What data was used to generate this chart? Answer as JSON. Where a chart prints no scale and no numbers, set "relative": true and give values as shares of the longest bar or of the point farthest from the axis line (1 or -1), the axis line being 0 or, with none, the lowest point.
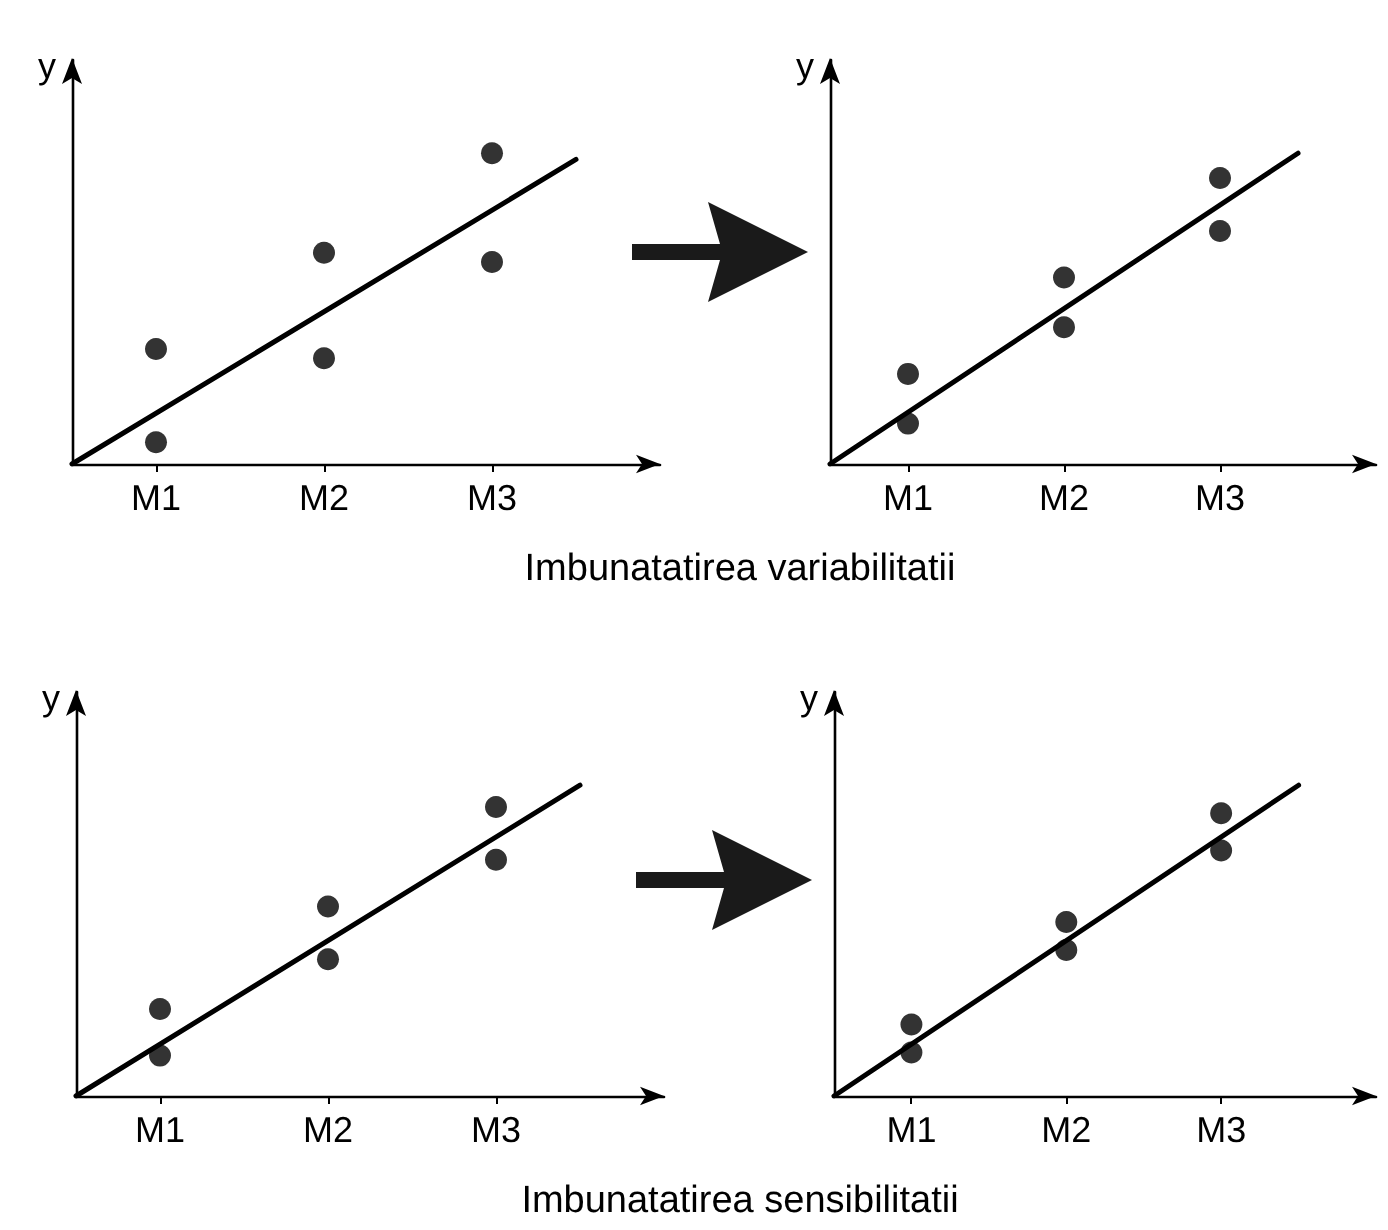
{
  "chart_data": [
    {
      "type": "scatter",
      "relative": true,
      "ylabel": "y",
      "tick_labels": "x",
      "grid": false,
      "marker": "circle",
      "categories": [
        null,
        "M1",
        null,
        "M2",
        null,
        "M3",
        null,
        null
      ],
      "annotations": [
        "Imbunatatirea variabilitatii"
      ],
      "series": [
        {
          "type": "scatter",
          "color": "#000000",
          "x": [
            "M1",
            "M1",
            "M2",
            "M2",
            "M3",
            "M3"
          ],
          "values": [
            0.37,
            0.07,
            0.68,
            0.34,
            1,
            0.65
          ]
        },
        {
          "type": "line",
          "color": "#000000",
          "marker": "none",
          "values": [
            0,
            null,
            null,
            null,
            null,
            null,
            0.98,
            null
          ]
        }
      ]
    },
    {
      "type": "scatter",
      "relative": true,
      "ylabel": "y",
      "tick_labels": "x",
      "grid": false,
      "marker": "circle",
      "categories": [
        null,
        "M1",
        null,
        "M2",
        null,
        "M3",
        null,
        null
      ],
      "series": [
        {
          "type": "scatter",
          "color": "#000000",
          "x": [
            "M1",
            "M1",
            "M2",
            "M2",
            "M3",
            "M3"
          ],
          "values": [
            0.29,
            0.13,
            0.6,
            0.44,
            0.92,
            0.75
          ]
        },
        {
          "type": "line",
          "color": "#000000",
          "marker": "none",
          "values": [
            0,
            null,
            null,
            null,
            null,
            null,
            1,
            null
          ]
        }
      ]
    },
    {
      "type": "scatter",
      "relative": true,
      "ylabel": "y",
      "tick_labels": "x",
      "grid": false,
      "marker": "circle",
      "categories": [
        null,
        "M1",
        null,
        "M2",
        null,
        "M3",
        null,
        null
      ],
      "annotations": [
        "Imbunatatirea sensibilitatii"
      ],
      "series": [
        {
          "type": "scatter",
          "color": "#000000",
          "x": [
            "M1",
            "M1",
            "M2",
            "M2",
            "M3",
            "M3"
          ],
          "values": [
            0.28,
            0.13,
            0.61,
            0.44,
            0.93,
            0.76
          ]
        },
        {
          "type": "line",
          "color": "#000000",
          "marker": "none",
          "values": [
            0,
            null,
            null,
            null,
            null,
            null,
            1,
            null
          ]
        }
      ]
    },
    {
      "type": "scatter",
      "relative": true,
      "ylabel": "y",
      "tick_labels": "x",
      "grid": false,
      "marker": "circle",
      "categories": [
        null,
        "M1",
        null,
        "M2",
        null,
        "M3",
        null,
        null
      ],
      "series": [
        {
          "type": "scatter",
          "color": "#000000",
          "x": [
            "M1",
            "M1",
            "M2",
            "M2",
            "M3",
            "M3"
          ],
          "values": [
            0.23,
            0.14,
            0.56,
            0.47,
            0.91,
            0.79
          ]
        },
        {
          "type": "line",
          "color": "#000000",
          "marker": "none",
          "values": [
            0,
            null,
            null,
            null,
            null,
            null,
            1,
            null
          ]
        }
      ]
    }
  ]
}
